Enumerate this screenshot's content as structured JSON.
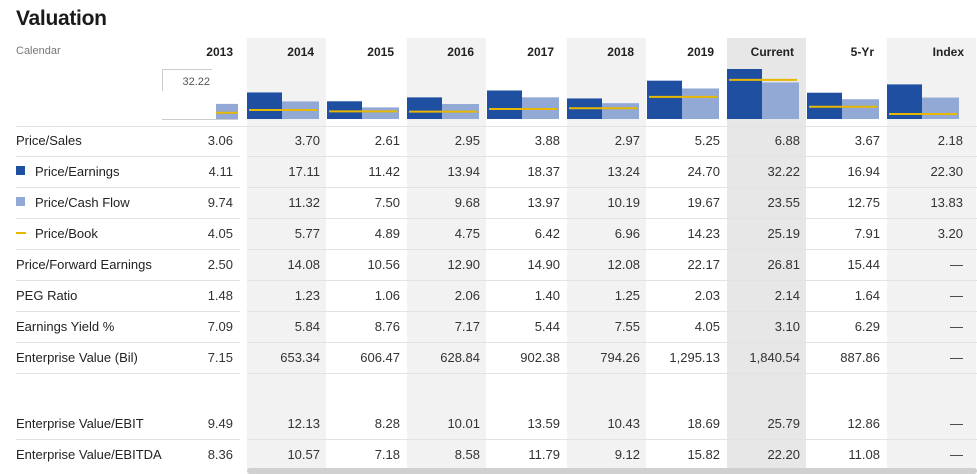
{
  "title": "Valuation",
  "calendar_label": "Calendar",
  "axis_max_label": "32.22",
  "columns": [
    "2013",
    "2014",
    "2015",
    "2016",
    "2017",
    "2018",
    "2019",
    "Current",
    "5-Yr",
    "Index"
  ],
  "rows": [
    {
      "label": "Price/Sales",
      "legend": null,
      "values": [
        "3.06",
        "3.70",
        "2.61",
        "2.95",
        "3.88",
        "2.97",
        "5.25",
        "6.88",
        "3.67",
        "2.18"
      ]
    },
    {
      "label": "Price/Earnings",
      "legend": "square-dark",
      "values": [
        "4.11",
        "17.11",
        "11.42",
        "13.94",
        "18.37",
        "13.24",
        "24.70",
        "32.22",
        "16.94",
        "22.30"
      ]
    },
    {
      "label": "Price/Cash Flow",
      "legend": "square-light",
      "values": [
        "9.74",
        "11.32",
        "7.50",
        "9.68",
        "13.97",
        "10.19",
        "19.67",
        "23.55",
        "12.75",
        "13.83"
      ]
    },
    {
      "label": "Price/Book",
      "legend": "line-gold",
      "values": [
        "4.05",
        "5.77",
        "4.89",
        "4.75",
        "6.42",
        "6.96",
        "14.23",
        "25.19",
        "7.91",
        "3.20"
      ]
    },
    {
      "label": "Price/Forward Earnings",
      "legend": null,
      "values": [
        "2.50",
        "14.08",
        "10.56",
        "12.90",
        "14.90",
        "12.08",
        "22.17",
        "26.81",
        "15.44",
        "—"
      ]
    },
    {
      "label": "PEG Ratio",
      "legend": null,
      "values": [
        "1.48",
        "1.23",
        "1.06",
        "2.06",
        "1.40",
        "1.25",
        "2.03",
        "2.14",
        "1.64",
        "—"
      ]
    },
    {
      "label": "Earnings Yield %",
      "legend": null,
      "values": [
        "7.09",
        "5.84",
        "8.76",
        "7.17",
        "5.44",
        "7.55",
        "4.05",
        "3.10",
        "6.29",
        "—"
      ]
    },
    {
      "label": "Enterprise Value (Bil)",
      "legend": null,
      "values": [
        "7.15",
        "653.34",
        "606.47",
        "628.84",
        "902.38",
        "794.26",
        "1,295.13",
        "1,840.54",
        "887.86",
        "—"
      ]
    },
    {
      "label": "Enterprise Value/EBIT",
      "legend": null,
      "values": [
        "9.49",
        "12.13",
        "8.28",
        "10.01",
        "13.59",
        "10.43",
        "18.69",
        "25.79",
        "12.86",
        "—"
      ]
    },
    {
      "label": "Enterprise Value/EBITDA",
      "legend": null,
      "values": [
        "8.36",
        "10.57",
        "7.18",
        "8.58",
        "11.79",
        "9.12",
        "15.82",
        "22.20",
        "11.08",
        "—"
      ]
    }
  ],
  "colors": {
    "dark_bar": "#1f4fa0",
    "light_bar": "#91a9d4",
    "gold_line": "#e8b800",
    "shade": "#f2f2f2",
    "current_shade": "#e7e7e7"
  },
  "chart_data": {
    "type": "bar",
    "categories": [
      "2013",
      "2014",
      "2015",
      "2016",
      "2017",
      "2018",
      "2019",
      "Current",
      "5-Yr",
      "Index"
    ],
    "ylim": [
      0,
      32.22
    ],
    "series": [
      {
        "name": "Price/Earnings",
        "style": "bar",
        "values": [
          4.11,
          17.11,
          11.42,
          13.94,
          18.37,
          13.24,
          24.7,
          32.22,
          16.94,
          22.3
        ]
      },
      {
        "name": "Price/Cash Flow",
        "style": "bar",
        "values": [
          9.74,
          11.32,
          7.5,
          9.68,
          13.97,
          10.19,
          19.67,
          23.55,
          12.75,
          13.83
        ]
      },
      {
        "name": "Price/Book",
        "style": "line",
        "values": [
          4.05,
          5.77,
          4.89,
          4.75,
          6.42,
          6.96,
          14.23,
          25.19,
          7.91,
          3.2
        ]
      }
    ]
  }
}
